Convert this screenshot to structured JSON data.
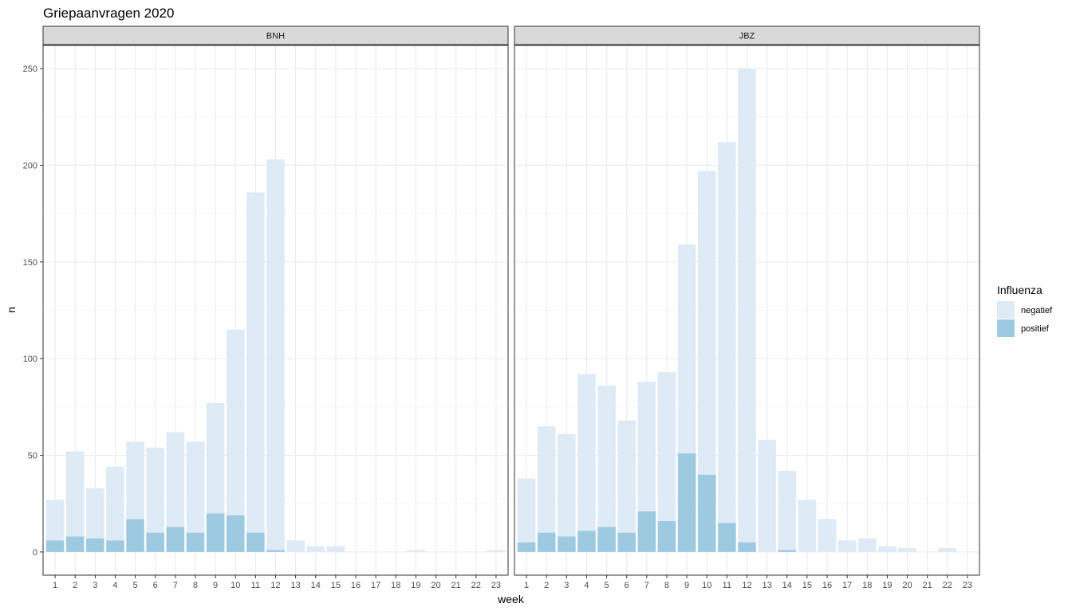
{
  "chart_data": {
    "type": "bar",
    "stacked": true,
    "title": "Griepaanvragen 2020",
    "xlabel": "week",
    "ylabel": "n",
    "ylim": [
      -12,
      262
    ],
    "y_ticks": [
      0,
      50,
      100,
      150,
      200,
      250
    ],
    "categories": [
      "1",
      "2",
      "3",
      "4",
      "5",
      "6",
      "7",
      "8",
      "9",
      "10",
      "11",
      "12",
      "13",
      "14",
      "15",
      "16",
      "17",
      "18",
      "19",
      "20",
      "21",
      "22",
      "23"
    ],
    "grid": true,
    "legend": {
      "title": "Influenza",
      "position": "right",
      "entries": [
        {
          "label": "negatief",
          "color": "#deebf7"
        },
        {
          "label": "positief",
          "color": "#9ecae1"
        }
      ]
    },
    "panels": [
      {
        "name": "BNH",
        "series": [
          {
            "name": "negatief",
            "color": "#deebf7",
            "values": [
              21,
              44,
              26,
              38,
              40,
              44,
              49,
              47,
              57,
              96,
              176,
              202,
              6,
              3,
              3,
              0,
              0,
              0,
              1,
              0,
              0,
              0,
              1
            ]
          },
          {
            "name": "positief",
            "color": "#9ecae1",
            "values": [
              6,
              8,
              7,
              6,
              17,
              10,
              13,
              10,
              20,
              19,
              10,
              1,
              0,
              0,
              0,
              0,
              0,
              0,
              0,
              0,
              0,
              0,
              0
            ]
          }
        ]
      },
      {
        "name": "JBZ",
        "series": [
          {
            "name": "negatief",
            "color": "#deebf7",
            "values": [
              33,
              55,
              53,
              81,
              73,
              58,
              67,
              77,
              108,
              157,
              197,
              245,
              58,
              41,
              27,
              17,
              6,
              7,
              3,
              2,
              0,
              2,
              0
            ]
          },
          {
            "name": "positief",
            "color": "#9ecae1",
            "values": [
              5,
              10,
              8,
              11,
              13,
              10,
              21,
              16,
              51,
              40,
              15,
              5,
              0,
              1,
              0,
              0,
              0,
              0,
              0,
              0,
              0,
              0,
              0
            ]
          }
        ]
      }
    ]
  }
}
